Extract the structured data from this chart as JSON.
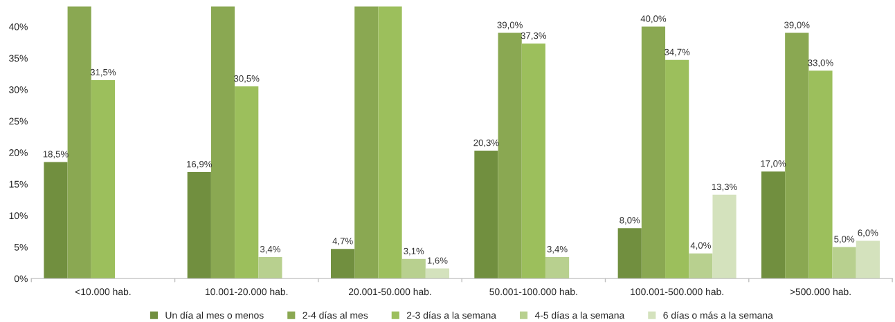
{
  "chart_data": {
    "type": "bar",
    "categories": [
      "<10.000 hab.",
      "10.001-20.000 hab.",
      "20.001-50.000 hab.",
      "50.001-100.000 hab.",
      "100.001-500.000 hab.",
      ">500.000 hab."
    ],
    "series": [
      {
        "name": "Un día al mes o menos",
        "color": "#718f3f",
        "values": [
          18.5,
          16.9,
          4.7,
          20.3,
          8.0,
          17.0
        ],
        "value_labels": [
          "18,5%",
          "16,9%",
          "4,7%",
          "20,3%",
          "8,0%",
          "17,0%"
        ]
      },
      {
        "name": "2-4 días al mes",
        "color": "#8aa852",
        "values": [
          43.2,
          43.2,
          43.2,
          39.0,
          40.0,
          39.0
        ],
        "value_labels": [
          null,
          null,
          null,
          "39,0%",
          "40,0%",
          "39,0%"
        ]
      },
      {
        "name": "2-3 días a la semana",
        "color": "#9cbf5c",
        "values": [
          31.5,
          30.5,
          43.2,
          37.3,
          34.7,
          33.0
        ],
        "value_labels": [
          "31,5%",
          "30,5%",
          null,
          "37,3%",
          "34,7%",
          "33,0%"
        ]
      },
      {
        "name": "4-5 días a la semana",
        "color": "#b8d08f",
        "values": [
          null,
          3.4,
          3.1,
          3.4,
          4.0,
          5.0
        ],
        "value_labels": [
          null,
          "3,4%",
          "3,1%",
          "3,4%",
          "4,0%",
          "5,0%"
        ]
      },
      {
        "name": "6 días o más a la semana",
        "color": "#d4e2bd",
        "values": [
          null,
          null,
          1.6,
          null,
          13.3,
          6.0
        ],
        "value_labels": [
          null,
          null,
          "1,6%",
          null,
          "13,3%",
          "6,0%"
        ]
      }
    ],
    "ylim": [
      0,
      43.2
    ],
    "yticks": [
      {
        "value": 0,
        "label": "0%"
      },
      {
        "value": 5,
        "label": "5%"
      },
      {
        "value": 10,
        "label": "10%"
      },
      {
        "value": 15,
        "label": "15%"
      },
      {
        "value": 20,
        "label": "20%"
      },
      {
        "value": 25,
        "label": "25%"
      },
      {
        "value": 30,
        "label": "30%"
      },
      {
        "value": 35,
        "label": "35%"
      },
      {
        "value": 40,
        "label": "40%"
      }
    ],
    "grid": false,
    "legend": "bottom"
  }
}
